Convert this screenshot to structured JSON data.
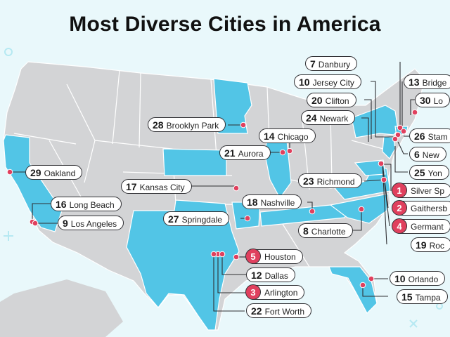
{
  "title": "Most Diverse Cities in America",
  "colors": {
    "highlight": "#52c5e6",
    "base": "#d3d4d6",
    "dot": "#e0405e",
    "line": "#2f2f33",
    "background": "#e9f8fb"
  },
  "cities": [
    {
      "rank": "1",
      "name": "Silver Sp",
      "top5": true
    },
    {
      "rank": "2",
      "name": "Gaithersb",
      "top5": true
    },
    {
      "rank": "3",
      "name": "Arlington",
      "top5": true
    },
    {
      "rank": "4",
      "name": "Germant",
      "top5": true
    },
    {
      "rank": "5",
      "name": "Houston",
      "top5": true
    },
    {
      "rank": "6",
      "name": "New"
    },
    {
      "rank": "7",
      "name": "Danbury"
    },
    {
      "rank": "8",
      "name": "Charlotte"
    },
    {
      "rank": "9",
      "name": "Los Angeles"
    },
    {
      "rank": "10",
      "name": "Orlando"
    },
    {
      "rank": "10",
      "name": "Jersey City"
    },
    {
      "rank": "12",
      "name": "Dallas"
    },
    {
      "rank": "13",
      "name": "Bridge"
    },
    {
      "rank": "14",
      "name": "Chicago"
    },
    {
      "rank": "15",
      "name": "Tampa"
    },
    {
      "rank": "16",
      "name": "Long Beach"
    },
    {
      "rank": "17",
      "name": "Kansas City"
    },
    {
      "rank": "18",
      "name": "Nashville"
    },
    {
      "rank": "19",
      "name": "Roc"
    },
    {
      "rank": "20",
      "name": "Clifton"
    },
    {
      "rank": "21",
      "name": "Aurora"
    },
    {
      "rank": "22",
      "name": "Fort Worth"
    },
    {
      "rank": "23",
      "name": "Richmond"
    },
    {
      "rank": "24",
      "name": "Newark"
    },
    {
      "rank": "25",
      "name": "Yon"
    },
    {
      "rank": "26",
      "name": "Stam"
    },
    {
      "rank": "27",
      "name": "Springdale"
    },
    {
      "rank": "28",
      "name": "Brooklyn Park"
    },
    {
      "rank": "29",
      "name": "Oakland"
    },
    {
      "rank": "30",
      "name": "Lo"
    }
  ]
}
